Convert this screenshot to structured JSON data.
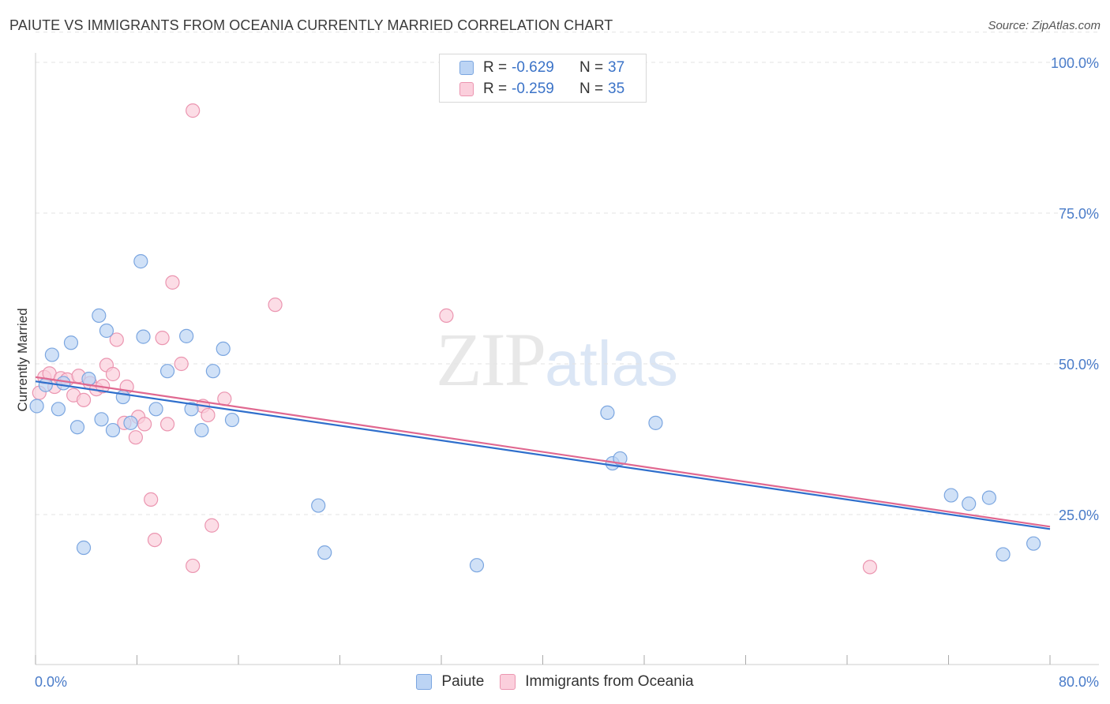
{
  "title": "PAIUTE VS IMMIGRANTS FROM OCEANIA CURRENTLY MARRIED CORRELATION CHART",
  "source": "Source: ZipAtlas.com",
  "watermark": {
    "zip": "ZIP",
    "atlas": "atlas"
  },
  "legend_top": {
    "rows": [
      {
        "r_label": "R =",
        "r_value": "-0.629",
        "n_label": "N =",
        "n_value": "37"
      },
      {
        "r_label": "R =",
        "r_value": "-0.259",
        "n_label": "N =",
        "n_value": "35"
      }
    ]
  },
  "legend_bottom": [
    "Paiute",
    "Immigrants from Oceania"
  ],
  "colors": {
    "paiute_fill": "#bcd4f4",
    "paiute_stroke": "#7ba6e0",
    "paiute_line": "#2f6fcc",
    "oceania_fill": "#fbcfdc",
    "oceania_stroke": "#eb95b0",
    "oceania_line": "#e06890",
    "grid": "#e3e3e3",
    "axis": "#cccccc"
  },
  "chart_data": {
    "type": "scatter",
    "title": "PAIUTE VS IMMIGRANTS FROM OCEANIA CURRENTLY MARRIED CORRELATION CHART",
    "xlabel": "",
    "ylabel": "Currently Married",
    "xlim": [
      0,
      80
    ],
    "ylim": [
      0,
      105
    ],
    "x_tick_labels": [
      "0.0%",
      "80.0%"
    ],
    "y_ticks": [
      25,
      50,
      75,
      100
    ],
    "y_tick_labels": [
      "25.0%",
      "50.0%",
      "75.0%",
      "100.0%"
    ],
    "grid": true,
    "series": [
      {
        "name": "Paiute",
        "R": -0.629,
        "N": 37,
        "trend": {
          "x": [
            0,
            80
          ],
          "y": [
            47.1,
            22.6
          ]
        },
        "points": [
          [
            0.1,
            43.0
          ],
          [
            0.8,
            46.5
          ],
          [
            1.3,
            51.5
          ],
          [
            1.8,
            42.5
          ],
          [
            2.2,
            46.8
          ],
          [
            2.8,
            53.5
          ],
          [
            3.3,
            39.5
          ],
          [
            3.8,
            19.5
          ],
          [
            4.2,
            47.5
          ],
          [
            5.0,
            58.0
          ],
          [
            5.2,
            40.8
          ],
          [
            5.6,
            55.5
          ],
          [
            6.1,
            39.0
          ],
          [
            6.9,
            44.5
          ],
          [
            7.5,
            40.2
          ],
          [
            8.3,
            67.0
          ],
          [
            8.5,
            54.5
          ],
          [
            9.5,
            42.5
          ],
          [
            10.4,
            48.8
          ],
          [
            11.9,
            54.6
          ],
          [
            12.3,
            42.5
          ],
          [
            13.1,
            39.0
          ],
          [
            14.0,
            48.8
          ],
          [
            14.8,
            52.5
          ],
          [
            15.5,
            40.7
          ],
          [
            22.3,
            26.5
          ],
          [
            22.8,
            18.7
          ],
          [
            34.8,
            16.6
          ],
          [
            45.1,
            41.9
          ],
          [
            45.5,
            33.5
          ],
          [
            46.1,
            34.3
          ],
          [
            48.9,
            40.2
          ],
          [
            72.2,
            28.2
          ],
          [
            73.6,
            26.8
          ],
          [
            75.2,
            27.8
          ],
          [
            76.3,
            18.4
          ],
          [
            78.7,
            20.2
          ]
        ]
      },
      {
        "name": "Immigrants from Oceania",
        "R": -0.259,
        "N": 35,
        "trend": {
          "x": [
            0,
            80
          ],
          "y": [
            47.8,
            23.0
          ]
        },
        "points": [
          [
            0.3,
            45.2
          ],
          [
            0.7,
            47.8
          ],
          [
            1.1,
            48.4
          ],
          [
            1.5,
            46.2
          ],
          [
            2.0,
            47.6
          ],
          [
            2.5,
            47.4
          ],
          [
            3.0,
            44.8
          ],
          [
            3.4,
            48.0
          ],
          [
            3.8,
            44.0
          ],
          [
            4.3,
            46.8
          ],
          [
            4.8,
            45.8
          ],
          [
            5.3,
            46.3
          ],
          [
            5.6,
            49.8
          ],
          [
            6.1,
            48.3
          ],
          [
            6.4,
            54.0
          ],
          [
            7.0,
            40.2
          ],
          [
            7.2,
            46.2
          ],
          [
            7.9,
            37.8
          ],
          [
            8.1,
            41.2
          ],
          [
            8.6,
            40.0
          ],
          [
            9.1,
            27.5
          ],
          [
            9.4,
            20.8
          ],
          [
            10.0,
            54.3
          ],
          [
            10.4,
            40.0
          ],
          [
            10.8,
            63.5
          ],
          [
            11.5,
            50.0
          ],
          [
            12.4,
            92.0
          ],
          [
            12.4,
            16.5
          ],
          [
            13.2,
            43.0
          ],
          [
            13.6,
            41.5
          ],
          [
            13.9,
            23.2
          ],
          [
            14.9,
            44.2
          ],
          [
            18.9,
            59.8
          ],
          [
            32.4,
            58.0
          ],
          [
            65.8,
            16.3
          ]
        ]
      }
    ]
  }
}
